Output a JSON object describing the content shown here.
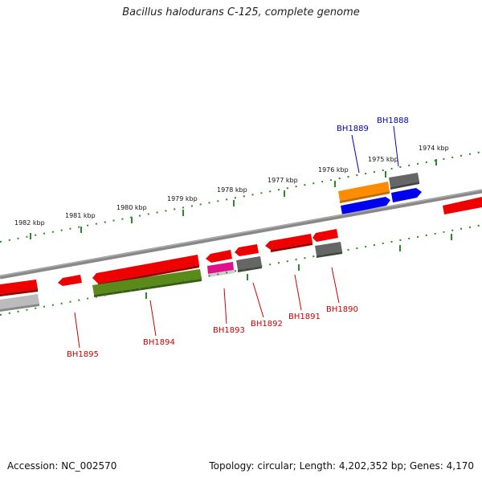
{
  "title": "Bacillus halodurans C-125, complete genome",
  "footer": {
    "accession": "Accession: NC_002570",
    "summary": "Topology: circular; Length: 4,202,352 bp; Genes: 4,170"
  },
  "kbp_labels": [
    "1982 kbp",
    "1981 kbp",
    "1980 kbp",
    "1979 kbp",
    "1978 kbp",
    "1977 kbp",
    "1976 kbp",
    "1975 kbp",
    "1974 kbp"
  ],
  "gene_labels": [
    {
      "text": "BH1889",
      "color": "#0000bb"
    },
    {
      "text": "BH1888",
      "color": "#0000bb"
    },
    {
      "text": "BH1895",
      "color": "#cc0000"
    },
    {
      "text": "BH1894",
      "color": "#cc0000"
    },
    {
      "text": "BH1893",
      "color": "#cc0000"
    },
    {
      "text": "BH1892",
      "color": "#cc0000"
    },
    {
      "text": "BH1891",
      "color": "#cc0000"
    },
    {
      "text": "BH1890",
      "color": "#cc0000"
    }
  ],
  "colors": {
    "backbone": "#808080",
    "tick": "#2a8a2a",
    "red_feature": "#ee0000",
    "blue_feature": "#0000ee",
    "orange_feature": "#ff8c00",
    "olive_feature": "#5a8a1a",
    "magenta_feature": "#e0108a",
    "gray_feature": "#666666",
    "lightgray_feature": "#bbbbbb"
  }
}
